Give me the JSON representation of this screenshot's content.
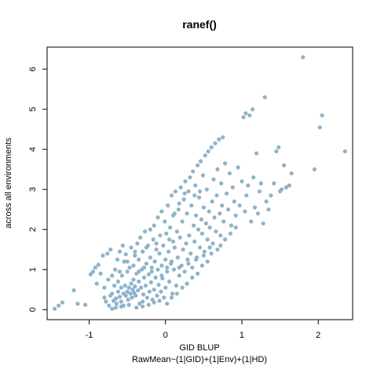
{
  "chart_data": {
    "type": "scatter",
    "title": "ranef()",
    "xlabel": "GID BLUP",
    "xlabel_sub": "RawMean~(1|GID)+(1|Env)+(1|HD)",
    "ylabel": "across all environments",
    "xlim": [
      -1.55,
      2.45
    ],
    "ylim": [
      -0.25,
      6.55
    ],
    "x_ticks": [
      -1,
      0,
      1,
      2
    ],
    "x_tick_labels": [
      "-1",
      "0",
      "1",
      "2"
    ],
    "y_ticks": [
      0,
      1,
      2,
      3,
      4,
      5,
      6
    ],
    "y_tick_labels": [
      "0",
      "1",
      "2",
      "3",
      "4",
      "5",
      "6"
    ],
    "point_color": "#8fb3c9",
    "grid": false,
    "points": [
      [
        -1.45,
        0.02
      ],
      [
        -1.4,
        0.1
      ],
      [
        -1.35,
        0.18
      ],
      [
        -1.2,
        0.48
      ],
      [
        -1.15,
        0.15
      ],
      [
        -1.05,
        0.12
      ],
      [
        -0.98,
        0.88
      ],
      [
        -0.95,
        0.95
      ],
      [
        -0.92,
        1.05
      ],
      [
        -0.88,
        1.12
      ],
      [
        -0.85,
        0.9
      ],
      [
        -0.82,
        1.35
      ],
      [
        -0.8,
        0.3
      ],
      [
        -0.8,
        0.55
      ],
      [
        -0.78,
        0.2
      ],
      [
        -0.76,
        1.4
      ],
      [
        -0.75,
        0.75
      ],
      [
        -0.74,
        0.1
      ],
      [
        -0.72,
        1.5
      ],
      [
        -0.72,
        0.35
      ],
      [
        -0.7,
        0.4
      ],
      [
        -0.7,
        0.02
      ],
      [
        -0.68,
        0.22
      ],
      [
        -0.67,
        0.6
      ],
      [
        -0.66,
        1.0
      ],
      [
        -0.65,
        0.28
      ],
      [
        -0.64,
        0.15
      ],
      [
        -0.63,
        1.25
      ],
      [
        -0.62,
        0.45
      ],
      [
        -0.62,
        0.7
      ],
      [
        -0.6,
        0.32
      ],
      [
        -0.6,
        1.45
      ],
      [
        -0.58,
        0.55
      ],
      [
        -0.58,
        0.2
      ],
      [
        -0.57,
        0.85
      ],
      [
        -0.56,
        1.6
      ],
      [
        -0.55,
        0.1
      ],
      [
        -0.55,
        0.4
      ],
      [
        -0.54,
        1.2
      ],
      [
        -0.53,
        0.6
      ],
      [
        -0.52,
        0.35
      ],
      [
        -0.52,
        1.38
      ],
      [
        -0.5,
        0.45
      ],
      [
        -0.5,
        0.95
      ],
      [
        -0.49,
        0.25
      ],
      [
        -0.48,
        0.55
      ],
      [
        -0.47,
        1.05
      ],
      [
        -0.46,
        0.4
      ],
      [
        -0.45,
        0.65
      ],
      [
        -0.45,
        1.55
      ],
      [
        -0.44,
        0.3
      ],
      [
        -0.43,
        0.5
      ],
      [
        -0.42,
        0.75
      ],
      [
        -0.42,
        1.1
      ],
      [
        -0.41,
        0.42
      ],
      [
        -0.4,
        0.58
      ],
      [
        -0.4,
        1.35
      ],
      [
        -0.39,
        0.35
      ],
      [
        -0.38,
        0.9
      ],
      [
        -0.37,
        1.65
      ],
      [
        -0.36,
        0.48
      ],
      [
        -0.35,
        0.7
      ],
      [
        -0.35,
        1.25
      ],
      [
        -0.34,
        0.15
      ],
      [
        -0.33,
        1.8
      ],
      [
        -0.32,
        0.55
      ],
      [
        -0.31,
        1.0
      ],
      [
        -0.3,
        0.2
      ],
      [
        -0.3,
        1.45
      ],
      [
        -0.29,
        0.38
      ],
      [
        -0.28,
        0.8
      ],
      [
        -0.27,
        1.95
      ],
      [
        -0.26,
        0.6
      ],
      [
        -0.25,
        1.15
      ],
      [
        -0.24,
        0.3
      ],
      [
        -0.23,
        1.6
      ],
      [
        -0.22,
        0.88
      ],
      [
        -0.21,
        0.45
      ],
      [
        -0.2,
        2.0
      ],
      [
        -0.2,
        1.3
      ],
      [
        -0.19,
        0.68
      ],
      [
        -0.18,
        1.05
      ],
      [
        -0.17,
        0.25
      ],
      [
        -0.16,
        1.75
      ],
      [
        -0.15,
        0.5
      ],
      [
        -0.15,
        2.1
      ],
      [
        -0.14,
        1.2
      ],
      [
        -0.13,
        0.8
      ],
      [
        -0.12,
        1.5
      ],
      [
        -0.11,
        0.35
      ],
      [
        -0.1,
        1.0
      ],
      [
        -0.1,
        2.3
      ],
      [
        -0.09,
        0.62
      ],
      [
        -0.08,
        1.4
      ],
      [
        -0.07,
        1.85
      ],
      [
        -0.06,
        0.45
      ],
      [
        -0.05,
        1.1
      ],
      [
        -0.05,
        2.45
      ],
      [
        -0.04,
        0.78
      ],
      [
        -0.03,
        1.6
      ],
      [
        -0.02,
        0.3
      ],
      [
        -0.01,
        2.2
      ],
      [
        0.0,
        1.25
      ],
      [
        0.0,
        0.55
      ],
      [
        0.01,
        1.9
      ],
      [
        0.02,
        0.95
      ],
      [
        0.03,
        2.6
      ],
      [
        0.04,
        1.45
      ],
      [
        0.05,
        0.7
      ],
      [
        0.06,
        2.05
      ],
      [
        0.07,
        1.15
      ],
      [
        0.08,
        2.85
      ],
      [
        0.09,
        0.4
      ],
      [
        0.1,
        1.7
      ],
      [
        0.1,
        2.35
      ],
      [
        0.11,
        1.0
      ],
      [
        0.12,
        1.55
      ],
      [
        0.13,
        2.95
      ],
      [
        0.14,
        0.6
      ],
      [
        0.15,
        1.95
      ],
      [
        0.16,
        1.3
      ],
      [
        0.17,
        2.5
      ],
      [
        0.18,
        0.85
      ],
      [
        0.19,
        1.8
      ],
      [
        0.2,
        3.05
      ],
      [
        0.21,
        1.1
      ],
      [
        0.22,
        2.2
      ],
      [
        0.23,
        1.5
      ],
      [
        0.24,
        2.75
      ],
      [
        0.25,
        0.95
      ],
      [
        0.26,
        3.2
      ],
      [
        0.27,
        1.65
      ],
      [
        0.28,
        2.4
      ],
      [
        0.29,
        1.25
      ],
      [
        0.3,
        2.95
      ],
      [
        0.31,
        1.85
      ],
      [
        0.32,
        3.3
      ],
      [
        0.33,
        1.4
      ],
      [
        0.34,
        2.6
      ],
      [
        0.35,
        1.05
      ],
      [
        0.36,
        3.45
      ],
      [
        0.37,
        2.1
      ],
      [
        0.38,
        1.7
      ],
      [
        0.39,
        3.1
      ],
      [
        0.4,
        2.35
      ],
      [
        0.41,
        1.3
      ],
      [
        0.42,
        3.6
      ],
      [
        0.43,
        2.0
      ],
      [
        0.44,
        2.8
      ],
      [
        0.45,
        1.55
      ],
      [
        0.46,
        3.7
      ],
      [
        0.47,
        2.25
      ],
      [
        0.48,
        1.9
      ],
      [
        0.49,
        3.35
      ],
      [
        0.5,
        2.55
      ],
      [
        0.51,
        1.45
      ],
      [
        0.52,
        3.85
      ],
      [
        0.53,
        2.15
      ],
      [
        0.54,
        3.0
      ],
      [
        0.55,
        1.75
      ],
      [
        0.56,
        3.95
      ],
      [
        0.57,
        2.45
      ],
      [
        0.58,
        2.05
      ],
      [
        0.6,
        4.05
      ],
      [
        0.61,
        2.7
      ],
      [
        0.62,
        1.65
      ],
      [
        0.63,
        3.25
      ],
      [
        0.64,
        2.3
      ],
      [
        0.65,
        4.15
      ],
      [
        0.66,
        1.95
      ],
      [
        0.67,
        2.85
      ],
      [
        0.68,
        3.5
      ],
      [
        0.7,
        4.25
      ],
      [
        0.71,
        2.4
      ],
      [
        0.72,
        1.85
      ],
      [
        0.73,
        3.15
      ],
      [
        0.74,
        2.6
      ],
      [
        0.75,
        4.3
      ],
      [
        0.76,
        2.2
      ],
      [
        0.78,
        3.65
      ],
      [
        0.8,
        2.9
      ],
      [
        0.82,
        2.5
      ],
      [
        0.84,
        3.4
      ],
      [
        0.86,
        2.1
      ],
      [
        0.88,
        3.05
      ],
      [
        0.9,
        2.7
      ],
      [
        0.92,
        2.35
      ],
      [
        0.95,
        3.55
      ],
      [
        0.97,
        2.6
      ],
      [
        1.0,
        3.2
      ],
      [
        1.02,
        4.8
      ],
      [
        1.04,
        2.45
      ],
      [
        1.05,
        4.9
      ],
      [
        1.06,
        2.85
      ],
      [
        1.08,
        3.1
      ],
      [
        1.1,
        4.85
      ],
      [
        1.12,
        2.2
      ],
      [
        1.14,
        5.0
      ],
      [
        1.15,
        3.3
      ],
      [
        1.17,
        2.55
      ],
      [
        1.19,
        3.9
      ],
      [
        1.21,
        2.4
      ],
      [
        1.23,
        2.95
      ],
      [
        1.25,
        3.15
      ],
      [
        1.28,
        2.15
      ],
      [
        1.3,
        5.3
      ],
      [
        1.32,
        2.7
      ],
      [
        1.35,
        2.5
      ],
      [
        1.38,
        2.85
      ],
      [
        1.42,
        3.15
      ],
      [
        1.45,
        3.95
      ],
      [
        1.48,
        4.05
      ],
      [
        1.5,
        2.95
      ],
      [
        1.52,
        3.0
      ],
      [
        1.55,
        3.6
      ],
      [
        1.58,
        3.05
      ],
      [
        1.62,
        3.1
      ],
      [
        1.65,
        3.4
      ],
      [
        1.8,
        6.3
      ],
      [
        1.95,
        3.5
      ],
      [
        2.02,
        4.55
      ],
      [
        2.05,
        4.85
      ],
      [
        2.35,
        3.95
      ],
      [
        -0.65,
        0.05
      ],
      [
        -0.58,
        0.08
      ],
      [
        -0.48,
        0.12
      ],
      [
        -0.38,
        0.05
      ],
      [
        -0.3,
        0.08
      ],
      [
        -0.22,
        0.12
      ],
      [
        -0.15,
        0.18
      ],
      [
        -0.08,
        0.22
      ],
      [
        0.02,
        0.15
      ],
      [
        0.08,
        0.3
      ],
      [
        0.15,
        0.4
      ],
      [
        0.22,
        0.55
      ],
      [
        0.28,
        0.65
      ],
      [
        0.35,
        0.8
      ],
      [
        0.42,
        0.9
      ],
      [
        0.48,
        1.1
      ],
      [
        0.55,
        1.2
      ],
      [
        0.6,
        1.4
      ],
      [
        0.68,
        1.5
      ],
      [
        0.72,
        1.6
      ],
      [
        0.78,
        1.75
      ],
      [
        0.85,
        1.9
      ],
      [
        0.92,
        2.05
      ],
      [
        -0.9,
        0.65
      ],
      [
        -0.7,
        0.85
      ],
      [
        -0.6,
        0.95
      ],
      [
        -0.5,
        1.2
      ],
      [
        -0.4,
        1.45
      ],
      [
        -0.25,
        1.55
      ],
      [
        -0.12,
        1.65
      ],
      [
        0.05,
        1.75
      ],
      [
        0.12,
        2.4
      ],
      [
        0.18,
        2.65
      ],
      [
        0.25,
        2.9
      ],
      [
        0.38,
        2.85
      ],
      [
        0.45,
        2.95
      ],
      [
        -0.35,
        0.95
      ],
      [
        -0.28,
        1.05
      ],
      [
        -0.18,
        0.95
      ],
      [
        -0.05,
        0.85
      ],
      [
        0.02,
        1.05
      ],
      [
        0.08,
        1.2
      ],
      [
        0.18,
        1.05
      ],
      [
        0.3,
        1.15
      ],
      [
        0.4,
        1.25
      ],
      [
        0.5,
        1.35
      ],
      [
        0.58,
        1.55
      ]
    ]
  }
}
